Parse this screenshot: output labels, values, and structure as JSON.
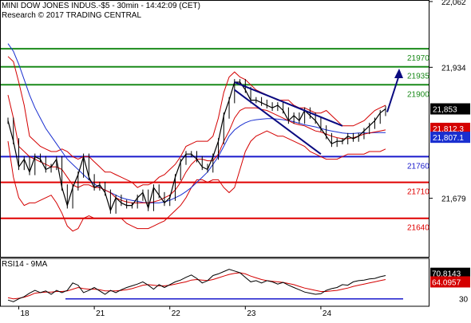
{
  "header": {
    "line1": "MINI DOW JONES INDUS.-$5 - 30min - 14:42:09 (CET)",
    "line2": "Research © 2017 TRADING CENTRAL"
  },
  "rsi_title": "RSI14 - 9MA",
  "colors": {
    "price": "#000000",
    "bollinger": "#d40000",
    "ma_blue": "#1a2fd0",
    "ma_red": "#d40000",
    "resistance": "#1a8a1a",
    "support_red": "#e00000",
    "pivot_blue": "#1a1acc",
    "trend_navy": "#0a0a80",
    "rsi": "#000000",
    "rsi_ma": "#d40000"
  },
  "chart_data": [
    {
      "type": "line",
      "name": "price",
      "x_ticks": [
        "18",
        "21",
        "22",
        "23",
        "24"
      ],
      "y_ticks": [
        22062,
        21934,
        21679
      ],
      "ylim": [
        21565,
        22065
      ],
      "horizontal_levels": [
        {
          "value": 21970,
          "label": "21970",
          "color": "resistance"
        },
        {
          "value": 21935,
          "label": "21935",
          "color": "resistance"
        },
        {
          "value": 21900,
          "label": "21900",
          "color": "resistance"
        },
        {
          "value": 21760,
          "label": "21760",
          "color": "pivot_blue"
        },
        {
          "value": 21710,
          "label": "21710",
          "color": "support_red"
        },
        {
          "value": 21640,
          "label": "21640",
          "color": "support_red"
        }
      ],
      "value_tags": [
        {
          "value": 21853,
          "label": "21,853",
          "bg": "#000000",
          "fg": "#ffffff"
        },
        {
          "value": 21812,
          "label": "21,812.3",
          "bg": "#d40000",
          "fg": "#ffffff"
        },
        {
          "value": 21807,
          "label": "21,807.1",
          "bg": "#1a2fd0",
          "fg": "#ffffff"
        }
      ],
      "series": [
        {
          "role": "close",
          "values": [
            21830,
            21790,
            21740,
            21755,
            21730,
            21760,
            21755,
            21735,
            21740,
            21755,
            21700,
            21665,
            21700,
            21725,
            21760,
            21720,
            21700,
            21705,
            21690,
            21655,
            21680,
            21670,
            21665,
            21665,
            21680,
            21690,
            21660,
            21700,
            21685,
            21670,
            21680,
            21720,
            21750,
            21765,
            21765,
            21755,
            21740,
            21735,
            21760,
            21790,
            21840,
            21870,
            21905,
            21905,
            21890,
            21870,
            21870,
            21865,
            21860,
            21855,
            21860,
            21850,
            21830,
            21840,
            21830,
            21850,
            21840,
            21830,
            21815,
            21800,
            21785,
            21790,
            21790,
            21800,
            21795,
            21800,
            21810,
            21820,
            21830,
            21845,
            21853
          ]
        },
        {
          "role": "bollinger_upper",
          "values": [
            21955,
            21945,
            21905,
            21860,
            21800,
            21790,
            21780,
            21775,
            21770,
            21770,
            21775,
            21770,
            21760,
            21755,
            21760,
            21760,
            21750,
            21740,
            21730,
            21730,
            21725,
            21720,
            21715,
            21710,
            21700,
            21705,
            21705,
            21710,
            21720,
            21725,
            21735,
            21745,
            21760,
            21780,
            21785,
            21790,
            21790,
            21790,
            21800,
            21835,
            21885,
            21915,
            21925,
            21915,
            21910,
            21900,
            21890,
            21885,
            21880,
            21875,
            21870,
            21870,
            21870,
            21860,
            21855,
            21855,
            21850,
            21845,
            21845,
            21850,
            21840,
            21830,
            21820,
            21820,
            21820,
            21825,
            21830,
            21840,
            21850,
            21855,
            21860
          ]
        },
        {
          "role": "bollinger_lower",
          "values": [
            21790,
            21720,
            21680,
            21665,
            21670,
            21670,
            21675,
            21680,
            21685,
            21670,
            21650,
            21625,
            21615,
            21620,
            21640,
            21645,
            21640,
            21640,
            21640,
            21640,
            21640,
            21640,
            21630,
            21625,
            21620,
            21620,
            21620,
            21625,
            21630,
            21635,
            21645,
            21655,
            21665,
            21680,
            21700,
            21715,
            21715,
            21710,
            21715,
            21715,
            21700,
            21690,
            21700,
            21735,
            21770,
            21790,
            21800,
            21805,
            21810,
            21805,
            21800,
            21800,
            21795,
            21790,
            21785,
            21780,
            21770,
            21765,
            21760,
            21755,
            21755,
            21755,
            21760,
            21765,
            21765,
            21765,
            21765,
            21770,
            21770,
            21770,
            21775
          ]
        },
        {
          "role": "ma_blue",
          "values": [
            21980,
            21965,
            21940,
            21910,
            21880,
            21855,
            21835,
            21815,
            21800,
            21785,
            21770,
            21755,
            21745,
            21735,
            21725,
            21715,
            21707,
            21700,
            21695,
            21690,
            21685,
            21680,
            21677,
            21675,
            21673,
            21671,
            21670,
            21670,
            21670,
            21672,
            21675,
            21680,
            21685,
            21692,
            21700,
            21710,
            21720,
            21730,
            21745,
            21760,
            21780,
            21800,
            21812,
            21820,
            21826,
            21830,
            21832,
            21833,
            21834,
            21834,
            21833,
            21832,
            21830,
            21828,
            21825,
            21822,
            21820,
            21818,
            21815,
            21812,
            21810,
            21808,
            21806,
            21805,
            21805,
            21806,
            21806,
            21806,
            21807,
            21807,
            21807
          ]
        },
        {
          "role": "ma_red",
          "values": [
            21880,
            21835,
            21780,
            21770,
            21760,
            21755,
            21750,
            21745,
            21740,
            21740,
            21735,
            21720,
            21705,
            21700,
            21705,
            21705,
            21700,
            21700,
            21695,
            21690,
            21680,
            21675,
            21672,
            21670,
            21670,
            21670,
            21670,
            21672,
            21675,
            21680,
            21685,
            21695,
            21710,
            21730,
            21745,
            21755,
            21755,
            21752,
            21752,
            21765,
            21790,
            21810,
            21835,
            21850,
            21855,
            21855,
            21855,
            21852,
            21850,
            21845,
            21840,
            21835,
            21830,
            21825,
            21822,
            21820,
            21815,
            21810,
            21808,
            21804,
            21800,
            21797,
            21795,
            21795,
            21797,
            21800,
            21804,
            21806,
            21808,
            21810,
            21812
          ]
        },
        {
          "role": "trend_upper",
          "values": [
            21905,
            21820
          ]
        },
        {
          "role": "trend_lower",
          "values": [
            21890,
            21765
          ]
        }
      ]
    },
    {
      "type": "line",
      "name": "RSI14 - 9MA",
      "ylim": [
        17,
        90
      ],
      "y_ticks": [
        30
      ],
      "horizontal_levels": [
        {
          "value": 30
        }
      ],
      "value_tags": [
        {
          "value": 70.8143,
          "label": "70.8143",
          "bg": "#000000",
          "fg": "#ffffff"
        },
        {
          "value": 64.0957,
          "label": "64.0957",
          "bg": "#d40000",
          "fg": "#ffffff"
        }
      ],
      "series": [
        {
          "role": "rsi",
          "values": [
            28,
            25,
            30,
            34,
            40,
            45,
            41,
            44,
            38,
            45,
            41,
            45,
            58,
            54,
            41,
            45,
            50,
            44,
            38,
            45,
            41,
            46,
            50,
            53,
            56,
            60,
            54,
            47,
            55,
            50,
            55,
            60,
            63,
            68,
            72,
            66,
            58,
            62,
            71,
            74,
            78,
            82,
            79,
            76,
            68,
            60,
            62,
            58,
            62,
            60,
            56,
            59,
            54,
            50,
            46,
            42,
            40,
            38,
            39,
            45,
            48,
            50,
            55,
            54,
            60,
            62,
            63,
            65,
            66,
            69,
            71
          ]
        },
        {
          "role": "rsi_ma",
          "values": [
            32,
            30,
            31,
            33,
            36,
            40,
            41,
            42,
            42,
            43,
            43,
            44,
            47,
            50,
            48,
            47,
            47,
            46,
            44,
            44,
            44,
            45,
            46,
            48,
            51,
            54,
            55,
            54,
            53,
            53,
            54,
            56,
            58,
            60,
            63,
            64,
            63,
            62,
            64,
            67,
            70,
            73,
            75,
            76,
            74,
            70,
            67,
            64,
            62,
            61,
            60,
            59,
            57,
            55,
            52,
            49,
            47,
            45,
            43,
            43,
            44,
            45,
            47,
            49,
            52,
            54,
            56,
            58,
            60,
            62,
            64
          ]
        }
      ]
    }
  ]
}
